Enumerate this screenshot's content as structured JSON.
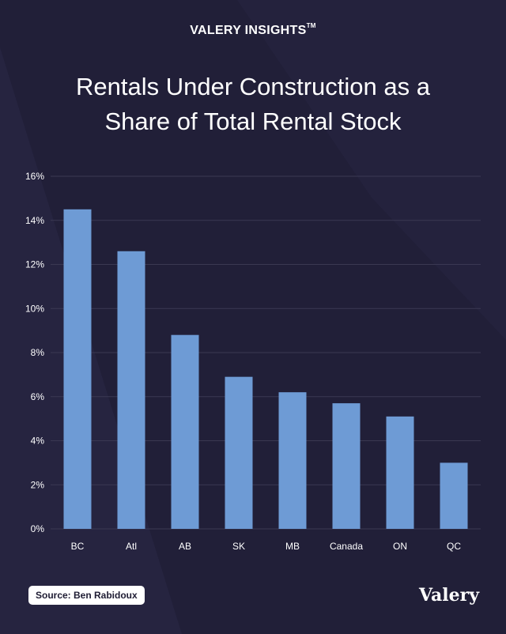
{
  "header": {
    "brand": "VALERY INSIGHTS",
    "trademark": "TM"
  },
  "title_line1": "Rentals Under Construction as a",
  "title_line2": "Share of Total Rental Stock",
  "chart_data": {
    "type": "bar",
    "title": "Rentals Under Construction as a Share of Total Rental Stock",
    "categories": [
      "BC",
      "Atl",
      "AB",
      "SK",
      "MB",
      "Canada",
      "ON",
      "QC"
    ],
    "values": [
      14.5,
      12.6,
      8.8,
      6.9,
      6.2,
      5.7,
      5.1,
      3.0
    ],
    "ylim": [
      0,
      16
    ],
    "yticks": [
      0,
      2,
      4,
      6,
      8,
      10,
      12,
      14,
      16
    ],
    "ytick_labels": [
      "0%",
      "2%",
      "4%",
      "6%",
      "8%",
      "10%",
      "12%",
      "14%",
      "16%"
    ],
    "grid": true,
    "bar_color": "#6e9bd5"
  },
  "footer": {
    "source": "Source: Ben Rabidoux",
    "logo": "Valery"
  },
  "colors": {
    "background": "#211f38",
    "grid": "#3a3852",
    "text": "#ffffff"
  }
}
